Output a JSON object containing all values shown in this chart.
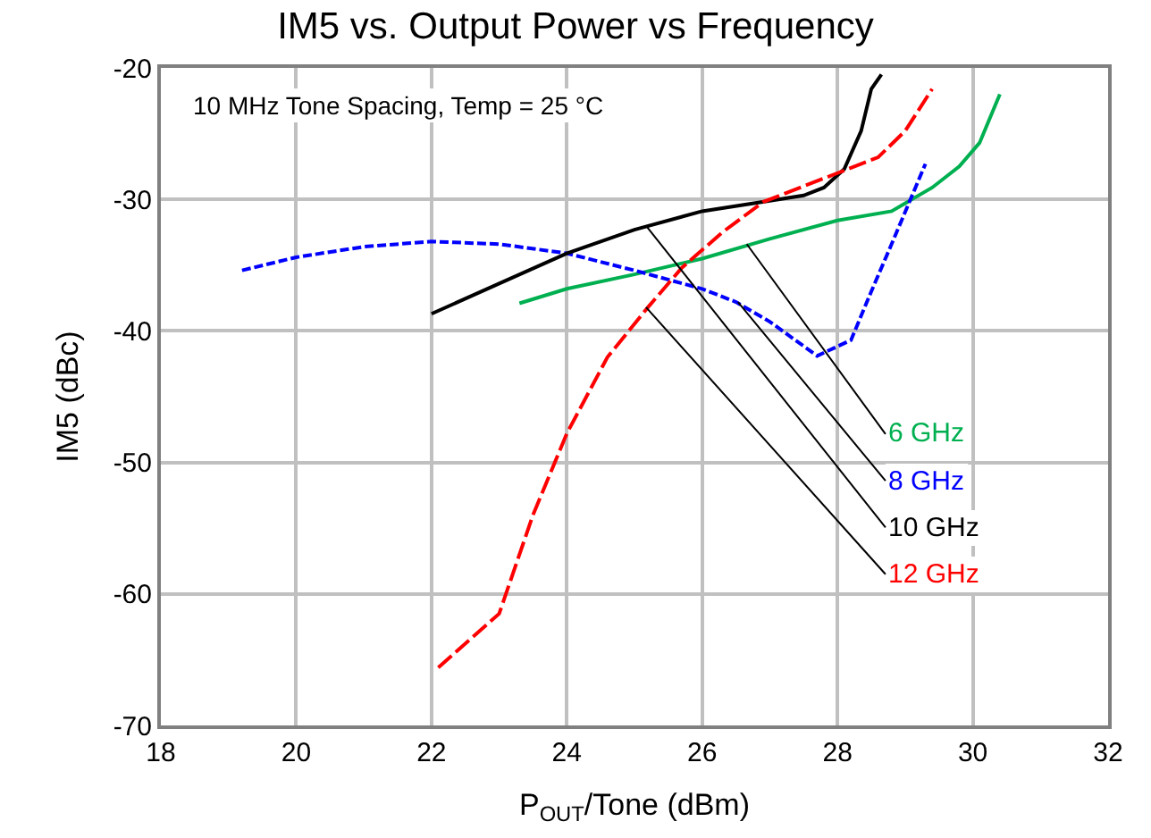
{
  "chart_data": {
    "type": "line",
    "title": "IM5 vs. Output Power vs Frequency",
    "xlabel": "P$_{OUT}$/Tone (dBm)",
    "ylabel": "IM5 (dBc)",
    "xlim": [
      18,
      32
    ],
    "xticks": [
      18,
      20,
      22,
      24,
      26,
      28,
      30,
      32
    ],
    "ylim": [
      -70,
      -20
    ],
    "yticks": [
      -70,
      -60,
      -50,
      -40,
      -30,
      -20
    ],
    "grid": true,
    "series": [
      {
        "color": "#00b050",
        "line_style": "solid",
        "x": [
          23.3,
          24,
          25,
          26,
          27,
          28,
          28.8,
          29.4,
          29.8,
          30.1,
          30.4
        ],
        "values": [
          -37.9,
          -36.8,
          -35.7,
          -34.5,
          -33,
          -31.6,
          -30.9,
          -29.1,
          -27.5,
          -25.7,
          -22
        ]
      },
      {
        "color": "#0000ff",
        "line_style": "dotted",
        "x": [
          19.2,
          20,
          21,
          22,
          23,
          24,
          25,
          26,
          26.5,
          27,
          27.7,
          28.2,
          28.5,
          28.8,
          29.3
        ],
        "values": [
          -35.4,
          -34.4,
          -33.6,
          -33.2,
          -33.4,
          -34.1,
          -35.4,
          -36.8,
          -37.8,
          -39.3,
          -41.9,
          -40.7,
          -37,
          -33.4,
          -27.3
        ]
      },
      {
        "color": "#000000",
        "line_style": "solid",
        "x": [
          22,
          23,
          24,
          25,
          26,
          27,
          27.5,
          27.8,
          28.1,
          28.35,
          28.5,
          28.65
        ],
        "values": [
          -38.7,
          -36.4,
          -34.1,
          -32.3,
          -30.9,
          -30.1,
          -29.7,
          -29.1,
          -27.7,
          -24.8,
          -21.6,
          -20.5
        ]
      },
      {
        "color": "#ff0000",
        "line_style": "dashed",
        "x": [
          22.1,
          23,
          23.5,
          24,
          24.6,
          25.2,
          25.7,
          26.3,
          26.9,
          27.5,
          28,
          28.6,
          29,
          29.4
        ],
        "values": [
          -65.6,
          -61.5,
          -54,
          -47.8,
          -42,
          -38.2,
          -35.2,
          -32.5,
          -30.2,
          -29,
          -28,
          -26.8,
          -24.8,
          -21.6
        ]
      }
    ],
    "annotations": [
      "10 MHz Tone Spacing, Temp = 25 °C",
      {
        "text": "6 GHz",
        "x": 26.66,
        "y": -33.4
      },
      {
        "text": "8 GHz",
        "x": 26.53,
        "y": -37.8
      },
      {
        "text": "10 GHz",
        "x": 25.17,
        "y": -32.0
      },
      {
        "text": "12 GHz",
        "x": 25.17,
        "y": -38.2
      }
    ]
  }
}
